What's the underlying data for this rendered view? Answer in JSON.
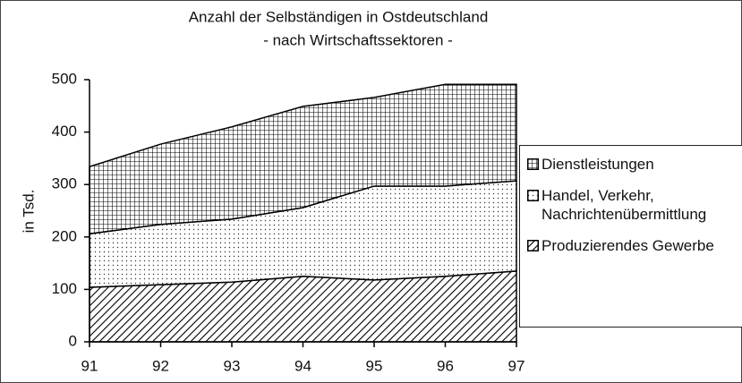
{
  "chart_data": {
    "type": "stacked_area",
    "title": "Anzahl der Selbständigen in Ostdeutschland",
    "subtitle": "- nach Wirtschaftssektoren -",
    "y_label": "in Tsd.",
    "categories": [
      "91",
      "92",
      "93",
      "94",
      "95",
      "96",
      "97"
    ],
    "series": [
      {
        "name": "Produzierendes Gewerbe",
        "color": "#000000",
        "pattern": "hatch",
        "values": [
          104,
          109,
          114,
          125,
          118,
          125,
          135
        ]
      },
      {
        "name": "Handel, Verkehr, Nachrichtenübermittlung",
        "color": "#000000",
        "pattern": "dots",
        "values": [
          102,
          115,
          120,
          131,
          179,
          172,
          172
        ]
      },
      {
        "name": "Dienstleistungen",
        "color": "#000000",
        "pattern": "grid",
        "values": [
          128,
          153,
          176,
          193,
          169,
          194,
          184
        ]
      }
    ],
    "ylim": [
      0,
      500
    ],
    "yticks": [
      0,
      100,
      200,
      300,
      400,
      500
    ],
    "grid": false,
    "legend": "right"
  }
}
